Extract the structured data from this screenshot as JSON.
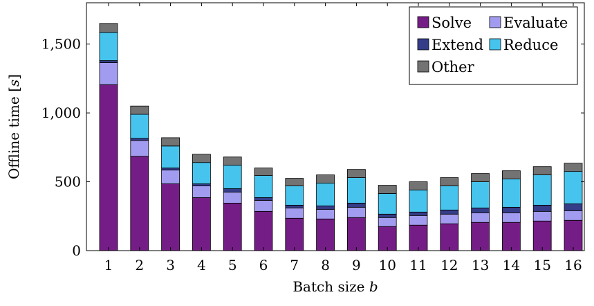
{
  "chart_data": {
    "type": "bar",
    "stacked": true,
    "xlabel": "Batch size",
    "xlabel_var": "b",
    "ylabel": "Offline time [",
    "ylabel_var": "s",
    "ylabel_end": "]",
    "ylim": [
      0,
      1800
    ],
    "yticks": [
      0,
      500,
      1000,
      1500
    ],
    "ytick_labels": [
      "0",
      "500",
      "1,000",
      "1,500"
    ],
    "categories": [
      "1",
      "2",
      "3",
      "4",
      "5",
      "6",
      "7",
      "8",
      "9",
      "10",
      "11",
      "12",
      "13",
      "14",
      "15",
      "16"
    ],
    "legend_position": "top-right",
    "grid": false,
    "series": [
      {
        "name": "Solve",
        "color": "#741d86",
        "values": [
          1205,
          685,
          485,
          385,
          345,
          285,
          235,
          230,
          240,
          175,
          185,
          195,
          205,
          205,
          215,
          220
        ]
      },
      {
        "name": "Evaluate",
        "color": "#a29cf0",
        "values": [
          160,
          115,
          100,
          85,
          80,
          80,
          75,
          70,
          75,
          65,
          70,
          70,
          70,
          70,
          70,
          70
        ]
      },
      {
        "name": "Extend",
        "color": "#353c88",
        "values": [
          15,
          15,
          15,
          15,
          25,
          20,
          20,
          25,
          30,
          25,
          25,
          30,
          35,
          40,
          45,
          50
        ]
      },
      {
        "name": "Reduce",
        "color": "#46c4ee",
        "values": [
          205,
          175,
          160,
          155,
          170,
          160,
          140,
          165,
          185,
          150,
          160,
          175,
          190,
          205,
          220,
          235
        ]
      },
      {
        "name": "Other",
        "color": "#737373",
        "values": [
          65,
          60,
          60,
          60,
          60,
          55,
          55,
          60,
          60,
          60,
          60,
          60,
          60,
          60,
          60,
          60
        ]
      }
    ]
  }
}
